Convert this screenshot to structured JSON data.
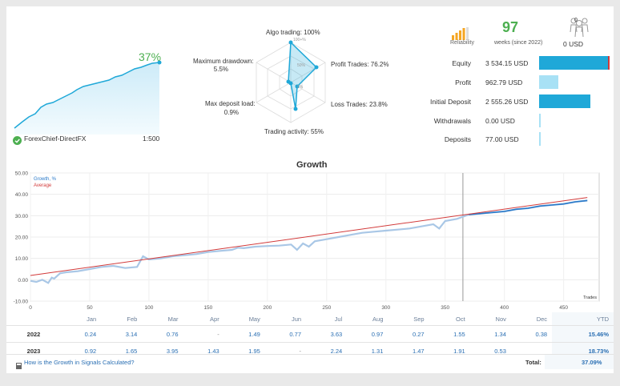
{
  "profile": {
    "growth_pct": "37%",
    "account_name": "ForexChief-DirectFX",
    "leverage": "1:500"
  },
  "radar": {
    "algo_trading": "Algo trading: 100%",
    "profit_trades": "Profit Trades: 76.2%",
    "loss_trades": "Loss Trades: 23.8%",
    "trading_activity": "Trading activity: 55%",
    "max_deposit_load_label": "Max deposit load:",
    "max_deposit_load_value": "0.9%",
    "max_drawdown_label": "Maximum drawdown:",
    "max_drawdown_value": "5.5%",
    "scale_100": "100+%",
    "scale_50": "50%",
    "scale_0": "0%"
  },
  "summary": {
    "reliability_label": "Reliability",
    "weeks_value": "97",
    "weeks_label": "weeks (since 2022)",
    "subscribers_count": "0",
    "subscribers_usd": "0 USD"
  },
  "stats": [
    {
      "label": "Equity",
      "value": "3 534.15 USD",
      "fill": 0.99
    },
    {
      "label": "Profit",
      "value": "962.79 USD",
      "fill": 0.27
    },
    {
      "label": "Initial Deposit",
      "value": "2 555.26 USD",
      "fill": 0.72
    },
    {
      "label": "Withdrawals",
      "value": "0.00 USD",
      "fill": 0.0
    },
    {
      "label": "Deposits",
      "value": "77.00 USD",
      "fill": 0.02
    }
  ],
  "colors": {
    "accent": "#1fa8d8",
    "accent_light": "#a8e1f5",
    "green": "#4caf50",
    "average": "#d23a3a",
    "growth": "#2979c9"
  },
  "chart_data": {
    "type": "line",
    "title": "Growth",
    "xlabel": "Trades",
    "ylabel": "",
    "xlim": [
      0,
      480
    ],
    "ylim": [
      -10,
      50
    ],
    "x_ticks": [
      0,
      50,
      100,
      150,
      200,
      250,
      300,
      350,
      400,
      450
    ],
    "y_ticks": [
      "-10.00",
      "0.00",
      "10.00",
      "20.00",
      "30.00",
      "40.00",
      "50.00"
    ],
    "marker_x": 365,
    "series": [
      {
        "name": "Growth, %",
        "x": [
          0,
          5,
          10,
          15,
          18,
          20,
          25,
          30,
          40,
          50,
          60,
          70,
          80,
          90,
          95,
          100,
          110,
          120,
          130,
          140,
          150,
          160,
          170,
          175,
          180,
          190,
          200,
          210,
          220,
          225,
          230,
          235,
          240,
          250,
          260,
          270,
          280,
          290,
          300,
          310,
          320,
          330,
          340,
          345,
          350,
          360,
          370,
          380,
          390,
          400,
          410,
          420,
          430,
          440,
          450,
          460,
          470
        ],
        "y": [
          -0.5,
          -1,
          0,
          -1.5,
          1,
          0.5,
          3,
          3.5,
          4,
          5,
          6,
          6.5,
          5.5,
          6,
          11,
          9.5,
          10,
          11,
          11.5,
          12,
          13,
          13.5,
          14,
          15,
          14.8,
          15.5,
          15.8,
          16,
          16.5,
          14,
          17,
          15.5,
          18,
          19,
          20,
          21,
          22,
          22.5,
          23,
          23.5,
          24,
          25,
          26,
          24,
          27.5,
          28.5,
          30.5,
          31,
          31.5,
          32,
          33,
          33.5,
          34.5,
          35,
          35.5,
          36.5,
          37.1
        ]
      },
      {
        "name": "Average",
        "x": [
          0,
          470
        ],
        "y": [
          2,
          38.5
        ]
      }
    ]
  },
  "table": {
    "months": [
      "Jan",
      "Feb",
      "Mar",
      "Apr",
      "May",
      "Jun",
      "Jul",
      "Aug",
      "Sep",
      "Oct",
      "Nov",
      "Dec"
    ],
    "ytd_label": "YTD",
    "rows": [
      {
        "year": "2022",
        "values": [
          "0.24",
          "3.14",
          "0.76",
          "-",
          "1.49",
          "0.77",
          "3.63",
          "0.97",
          "0.27",
          "1.55",
          "1.34",
          "0.38"
        ],
        "ytd": "15.46%"
      },
      {
        "year": "2023",
        "values": [
          "0.92",
          "1.65",
          "3.95",
          "1.43",
          "1.95",
          "-",
          "2.24",
          "1.31",
          "1.47",
          "1.91",
          "0.53",
          ""
        ],
        "ytd": "18.73%"
      }
    ],
    "total_label": "Total:",
    "total_value": "37.09%"
  },
  "footer": {
    "help_link": "How is the Growth in Signals Calculated?"
  }
}
